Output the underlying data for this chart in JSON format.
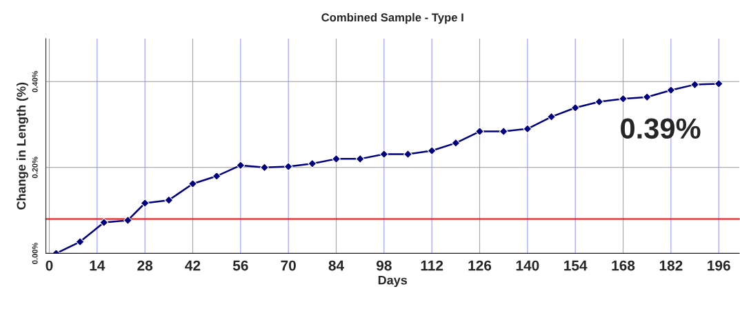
{
  "chart_data": {
    "type": "line",
    "title": "Combined Sample - Type I",
    "xlabel": "Days",
    "ylabel": "Change in Length (%)",
    "x": [
      2,
      9,
      16,
      23,
      28,
      35,
      42,
      49,
      56,
      63,
      70,
      77,
      84,
      91,
      98,
      105,
      112,
      119,
      126,
      133,
      140,
      147,
      154,
      161,
      168,
      175,
      182,
      189,
      196
    ],
    "series": [
      {
        "color": "#000080",
        "values": [
          0,
          0.027,
          0.072,
          0.077,
          0.117,
          0.124,
          0.162,
          0.18,
          0.205,
          0.2,
          0.202,
          0.209,
          0.22,
          0.22,
          0.231,
          0.231,
          0.239,
          0.257,
          0.284,
          0.284,
          0.29,
          0.318,
          0.339,
          0.353,
          0.36,
          0.364,
          0.38,
          0.393,
          0.395
        ]
      }
    ],
    "xlim": [
      -1,
      202
    ],
    "xticks": [
      0,
      14,
      28,
      42,
      56,
      70,
      84,
      98,
      112,
      126,
      140,
      154,
      168,
      182,
      196
    ],
    "ylim": [
      0,
      0.5
    ],
    "yticks": [
      {
        "value": 0,
        "label": "0.00%"
      },
      {
        "value": 0.2,
        "label": "0.20%"
      },
      {
        "value": 0.4,
        "label": "0.40%"
      }
    ],
    "ref_lines": [
      {
        "axis": "y",
        "value": 0.08,
        "color": "#ff0000"
      }
    ],
    "annotations": [
      "0.39%"
    ],
    "grid": true,
    "marker": "diamond",
    "line_style": "solid",
    "legend": false
  }
}
